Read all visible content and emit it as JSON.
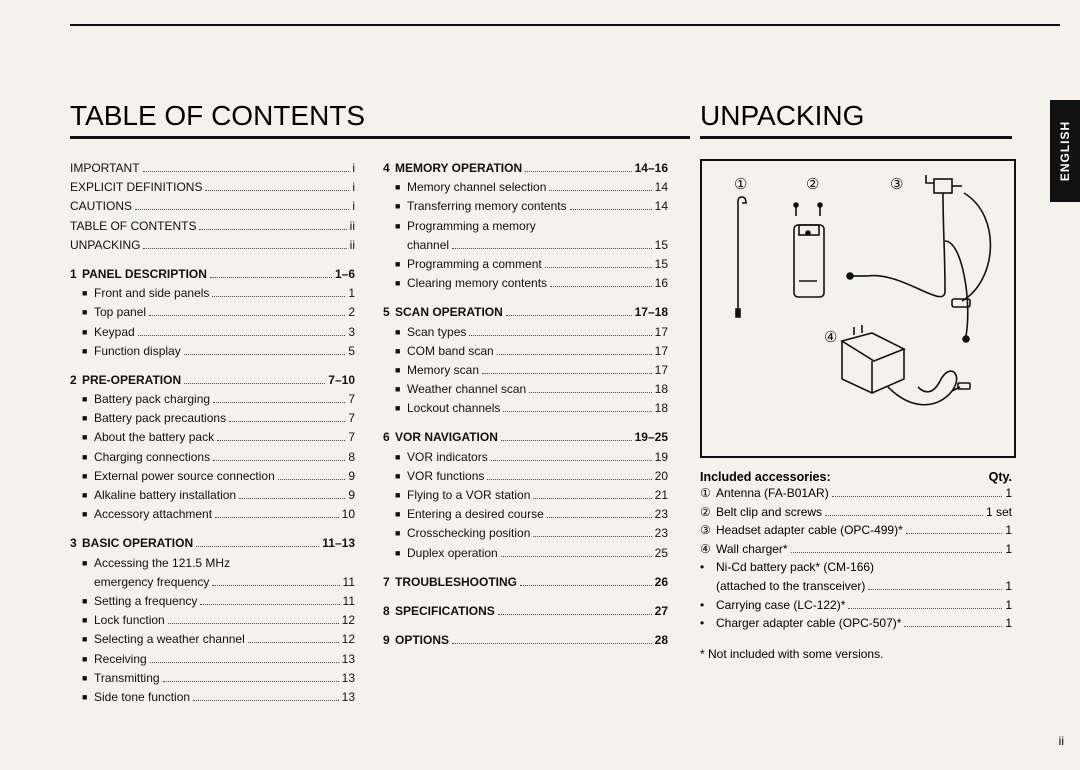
{
  "colors": {
    "background": "#f5f2ed",
    "ink": "#111111",
    "dot": "#444444"
  },
  "page_number": "ii",
  "side_tab": "ENGLISH",
  "toc": {
    "title": "TABLE OF CONTENTS",
    "front_matter": [
      {
        "label": "IMPORTANT",
        "page": "i"
      },
      {
        "label": "EXPLICIT DEFINITIONS",
        "page": "i"
      },
      {
        "label": "CAUTIONS",
        "page": "i"
      },
      {
        "label": "TABLE OF CONTENTS",
        "page": "ii"
      },
      {
        "label": "UNPACKING",
        "page": "ii"
      }
    ],
    "sections": [
      {
        "num": "1",
        "title": "PANEL DESCRIPTION",
        "pages": "1–6",
        "items": [
          {
            "label": "Front and side panels",
            "page": "1"
          },
          {
            "label": "Top panel",
            "page": "2"
          },
          {
            "label": "Keypad",
            "page": "3"
          },
          {
            "label": "Function display",
            "page": "5"
          }
        ]
      },
      {
        "num": "2",
        "title": "PRE-OPERATION",
        "pages": "7–10",
        "items": [
          {
            "label": "Battery pack charging",
            "page": "7"
          },
          {
            "label": "Battery pack precautions",
            "page": "7"
          },
          {
            "label": "About the battery pack",
            "page": "7"
          },
          {
            "label": "Charging connections",
            "page": "8"
          },
          {
            "label": "External power source connection",
            "page": "9"
          },
          {
            "label": "Alkaline battery installation",
            "page": "9"
          },
          {
            "label": "Accessory attachment",
            "page": "10"
          }
        ]
      },
      {
        "num": "3",
        "title": "BASIC OPERATION",
        "pages": "11–13",
        "items": [
          {
            "label": "Accessing the 121.5 MHz",
            "sub": "emergency frequency",
            "page": "11"
          },
          {
            "label": "Setting a frequency",
            "page": "11"
          },
          {
            "label": "Lock function",
            "page": "12"
          },
          {
            "label": "Selecting a weather channel",
            "page": "12"
          },
          {
            "label": "Receiving",
            "page": "13"
          },
          {
            "label": "Transmitting",
            "page": "13"
          },
          {
            "label": "Side tone function",
            "page": "13"
          }
        ]
      },
      {
        "num": "4",
        "title": "MEMORY OPERATION",
        "pages": "14–16",
        "items": [
          {
            "label": "Memory channel selection",
            "page": "14"
          },
          {
            "label": "Transferring memory contents",
            "page": "14"
          },
          {
            "label": "Programming a memory",
            "sub": "channel",
            "page": "15"
          },
          {
            "label": "Programming a comment",
            "page": "15"
          },
          {
            "label": "Clearing memory contents",
            "page": "16"
          }
        ]
      },
      {
        "num": "5",
        "title": "SCAN OPERATION",
        "pages": "17–18",
        "items": [
          {
            "label": "Scan types",
            "page": "17"
          },
          {
            "label": "COM band scan",
            "page": "17"
          },
          {
            "label": "Memory scan",
            "page": "17"
          },
          {
            "label": "Weather channel scan",
            "page": "18"
          },
          {
            "label": "Lockout channels",
            "page": "18"
          }
        ]
      },
      {
        "num": "6",
        "title": "VOR NAVIGATION",
        "pages": "19–25",
        "items": [
          {
            "label": "VOR indicators",
            "page": "19"
          },
          {
            "label": "VOR functions",
            "page": "20"
          },
          {
            "label": "Flying to a VOR station",
            "page": "21"
          },
          {
            "label": "Entering a desired course",
            "page": "23"
          },
          {
            "label": "Crosschecking position",
            "page": "23"
          },
          {
            "label": "Duplex operation",
            "page": "25"
          }
        ]
      },
      {
        "num": "7",
        "title": "TROUBLESHOOTING",
        "pages": "26"
      },
      {
        "num": "8",
        "title": "SPECIFICATIONS",
        "pages": "27"
      },
      {
        "num": "9",
        "title": "OPTIONS",
        "pages": "28"
      }
    ]
  },
  "unpacking": {
    "title": "UNPACKING",
    "accessories_heading": "Included accessories:",
    "qty_heading": "Qty.",
    "items": [
      {
        "mark": "①",
        "label": "Antenna (FA-B01AR)",
        "qty": "1"
      },
      {
        "mark": "②",
        "label": "Belt clip and screws",
        "qty": "1 set"
      },
      {
        "mark": "③",
        "label": "Headset adapter cable (OPC-499)*",
        "qty": "1"
      },
      {
        "mark": "④",
        "label": "Wall charger*",
        "qty": "1"
      },
      {
        "mark": "•",
        "label": "Ni-Cd battery pack* (CM-166)",
        "sub": "(attached to the transceiver)",
        "qty": "1"
      },
      {
        "mark": "•",
        "label": "Carrying case (LC-122)*",
        "qty": "1"
      },
      {
        "mark": "•",
        "label": "Charger adapter cable (OPC-507)*",
        "qty": "1"
      }
    ],
    "footnote": "* Not included with some versions.",
    "figure_labels": {
      "1": "①",
      "2": "②",
      "3": "③",
      "4": "④"
    }
  }
}
